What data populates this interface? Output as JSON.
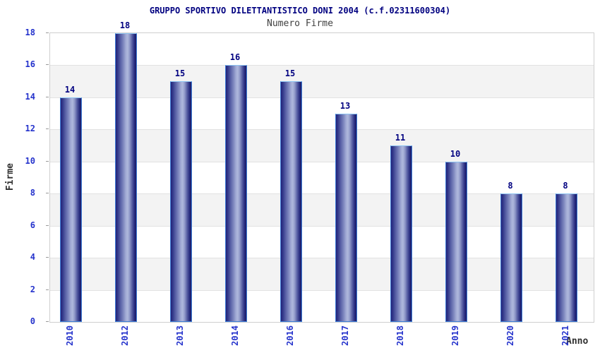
{
  "header": {
    "title": "GRUPPO SPORTIVO DILETTANTISTICO DONI 2004 (c.f.02311600304)",
    "subtitle": "Numero Firme"
  },
  "chart_data": {
    "type": "bar",
    "title": "GRUPPO SPORTIVO DILETTANTISTICO DONI 2004 (c.f.02311600304)",
    "subtitle": "Numero Firme",
    "categories": [
      "2010",
      "2012",
      "2013",
      "2014",
      "2016",
      "2017",
      "2018",
      "2019",
      "2020",
      "2021"
    ],
    "values": [
      14,
      18,
      15,
      16,
      15,
      13,
      11,
      10,
      8,
      8
    ],
    "xlabel": "Anno",
    "ylabel": "Firme",
    "ylim": [
      0,
      18
    ],
    "yticks": [
      0,
      2,
      4,
      6,
      8,
      10,
      12,
      14,
      16,
      18
    ],
    "grid": "horizontal-bands-alternating",
    "legend": "none",
    "colors": {
      "title_text": "#000080",
      "subtitle_text": "#404040",
      "tick_label_text": "#2533cc",
      "value_label_text": "#000080",
      "axis_title_text": "#303030",
      "band_white": "#ffffff",
      "band_gray": "#f3f3f3",
      "grid_line": "#e2e2e2",
      "plot_border": "#cfcfcf",
      "bar_border": "#3f7fd8",
      "bar_border_top": "#8ec4f2",
      "bar_dark_edge": "#23237a",
      "bar_highlight": "#aeb7dc"
    }
  }
}
